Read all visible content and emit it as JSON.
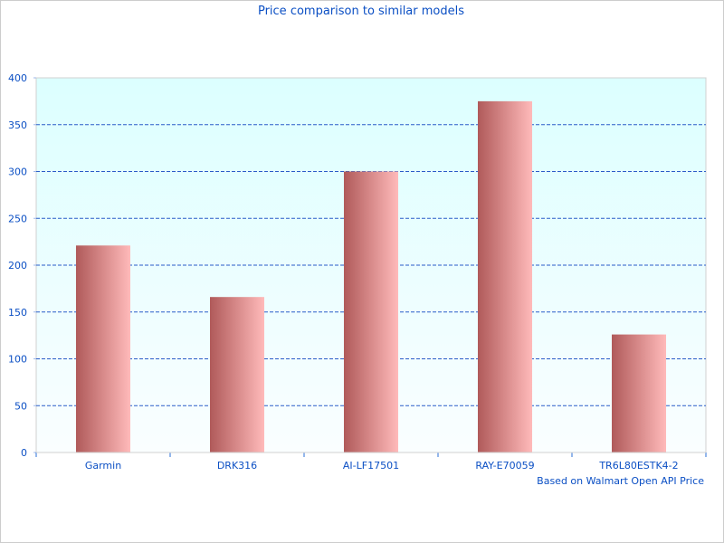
{
  "chart_data": {
    "type": "bar",
    "title": "Price comparison to similar models",
    "footnote": "Based on Walmart Open API Price",
    "categories": [
      "Garmin",
      "DRK316",
      "AI-LF17501",
      "RAY-E70059",
      "TR6L80ESTK4-2"
    ],
    "values": [
      221,
      166,
      300,
      375,
      126
    ],
    "ylim": [
      0,
      400
    ],
    "yticks": [
      0,
      50,
      100,
      150,
      200,
      250,
      300,
      350,
      400
    ],
    "grid": true,
    "colors": {
      "bar_dark": "#b05a5a",
      "bar_light": "#ffbaba",
      "plot_bg_top": "#dcffff",
      "plot_bg_bottom": "#fafeff",
      "grid": "#2a5cc8",
      "text": "#0b4fc4"
    }
  }
}
